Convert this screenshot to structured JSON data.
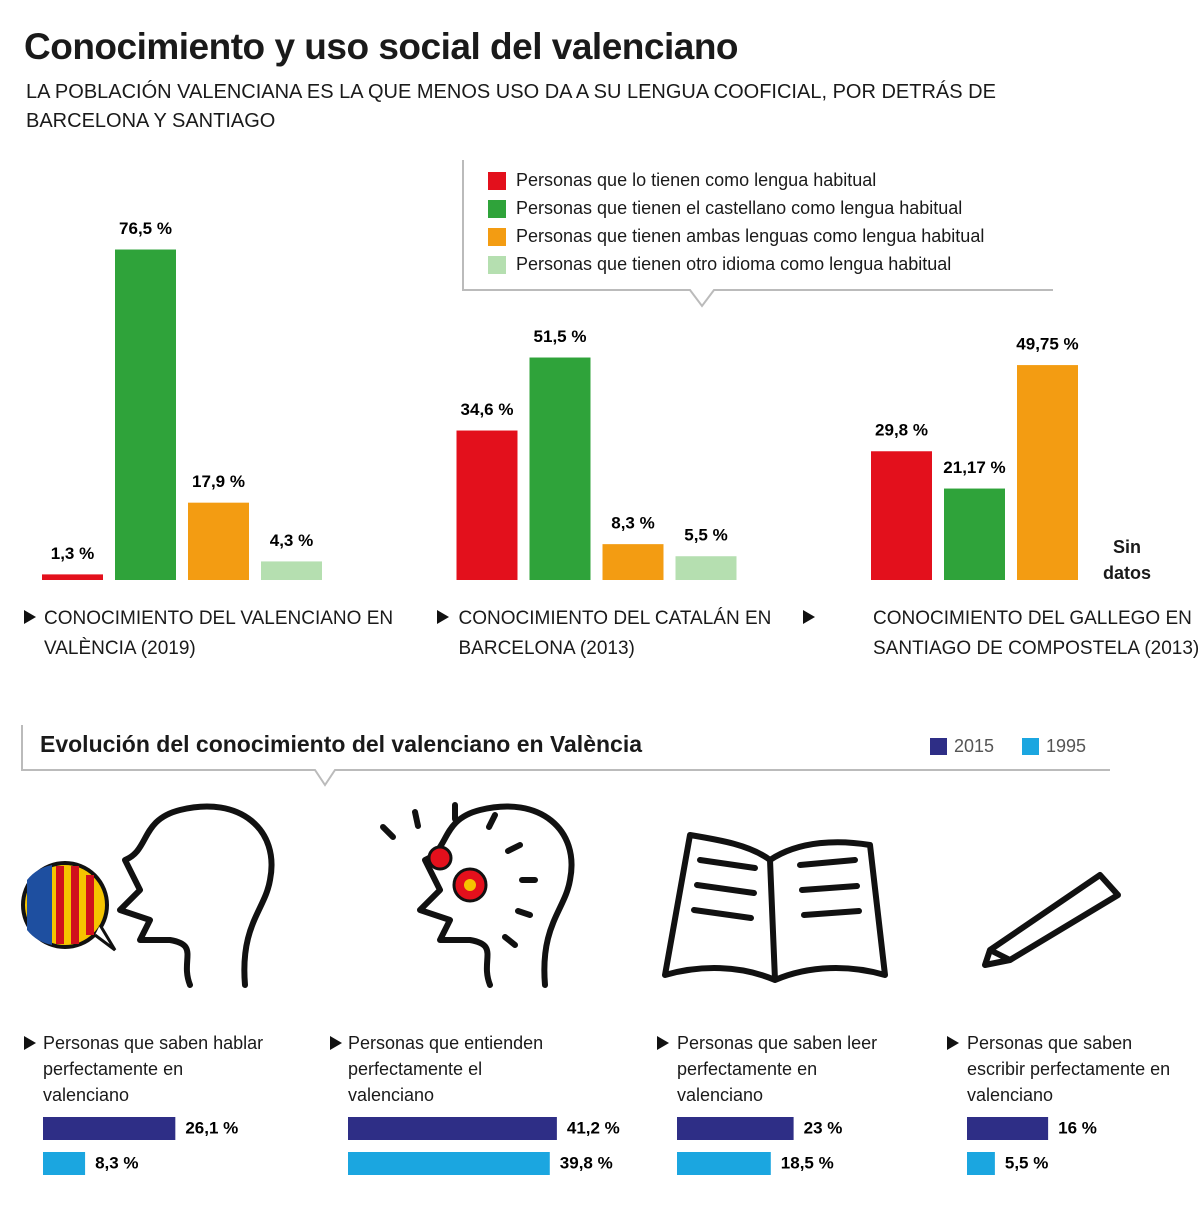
{
  "header": {
    "title": "Conocimiento y uso social del valenciano",
    "subtitle": "LA POBLACIÓN VALENCIANA ES LA QUE MENOS USO DA A SU LENGUA COOFICIAL, POR DETRÁS DE BARCELONA Y SANTIAGO"
  },
  "chart_data": [
    {
      "type": "bar",
      "categories": [
        "CONOCIMIENTO DEL VALENCIANO EN VALÈNCIA (2019)",
        "CONOCIMIENTO DEL CATALÁN EN BARCELONA (2013)",
        "CONOCIMIENTO DEL GALLEGO EN SANTIAGO DE COMPOSTELA (2013)"
      ],
      "series": [
        {
          "name": "Personas que lo tienen como lengua habitual",
          "color": "#e3101c",
          "values": [
            1.3,
            34.6,
            29.8
          ],
          "value_labels": [
            "1,3 %",
            "34,6 %",
            "29,8 %"
          ]
        },
        {
          "name": "Personas que tienen el castellano como lengua habitual",
          "color": "#2fa33a",
          "values": [
            76.5,
            51.5,
            21.17
          ],
          "value_labels": [
            "76,5 %",
            "51,5 %",
            "21,17 %"
          ]
        },
        {
          "name": "Personas que tienen ambas lenguas como lengua habitual",
          "color": "#f39c12",
          "values": [
            17.9,
            8.3,
            49.75
          ],
          "value_labels": [
            "17,9 %",
            "8,3 %",
            "49,75 %"
          ]
        },
        {
          "name": "Personas que tienen otro idioma como lengua habitual",
          "color": "#b5dfb0",
          "values": [
            4.3,
            5.5,
            null
          ],
          "value_labels": [
            "4,3 %",
            "5,5 %",
            null
          ]
        }
      ],
      "annotation": "Sin datos"
    },
    {
      "type": "hbar",
      "title": "Evolución del conocimiento del valenciano en València",
      "categories": [
        "Personas que saben hablar perfectamente en valenciano",
        "Personas que entienden perfectamente el valenciano",
        "Personas que saben leer perfectamente en valenciano",
        "Personas que saben escribir perfectamente en valenciano"
      ],
      "series": [
        {
          "name": "2015",
          "color": "#2e2e86",
          "values": [
            26.1,
            41.2,
            23,
            16
          ],
          "value_labels": [
            "26,1 %",
            "41,2 %",
            "23 %",
            "16 %"
          ]
        },
        {
          "name": "1995",
          "color": "#1ba6e0",
          "values": [
            8.3,
            39.8,
            18.5,
            5.5
          ],
          "value_labels": [
            "8,3 %",
            "39,8 %",
            "18,5 %",
            "5,5 %"
          ]
        }
      ]
    }
  ]
}
